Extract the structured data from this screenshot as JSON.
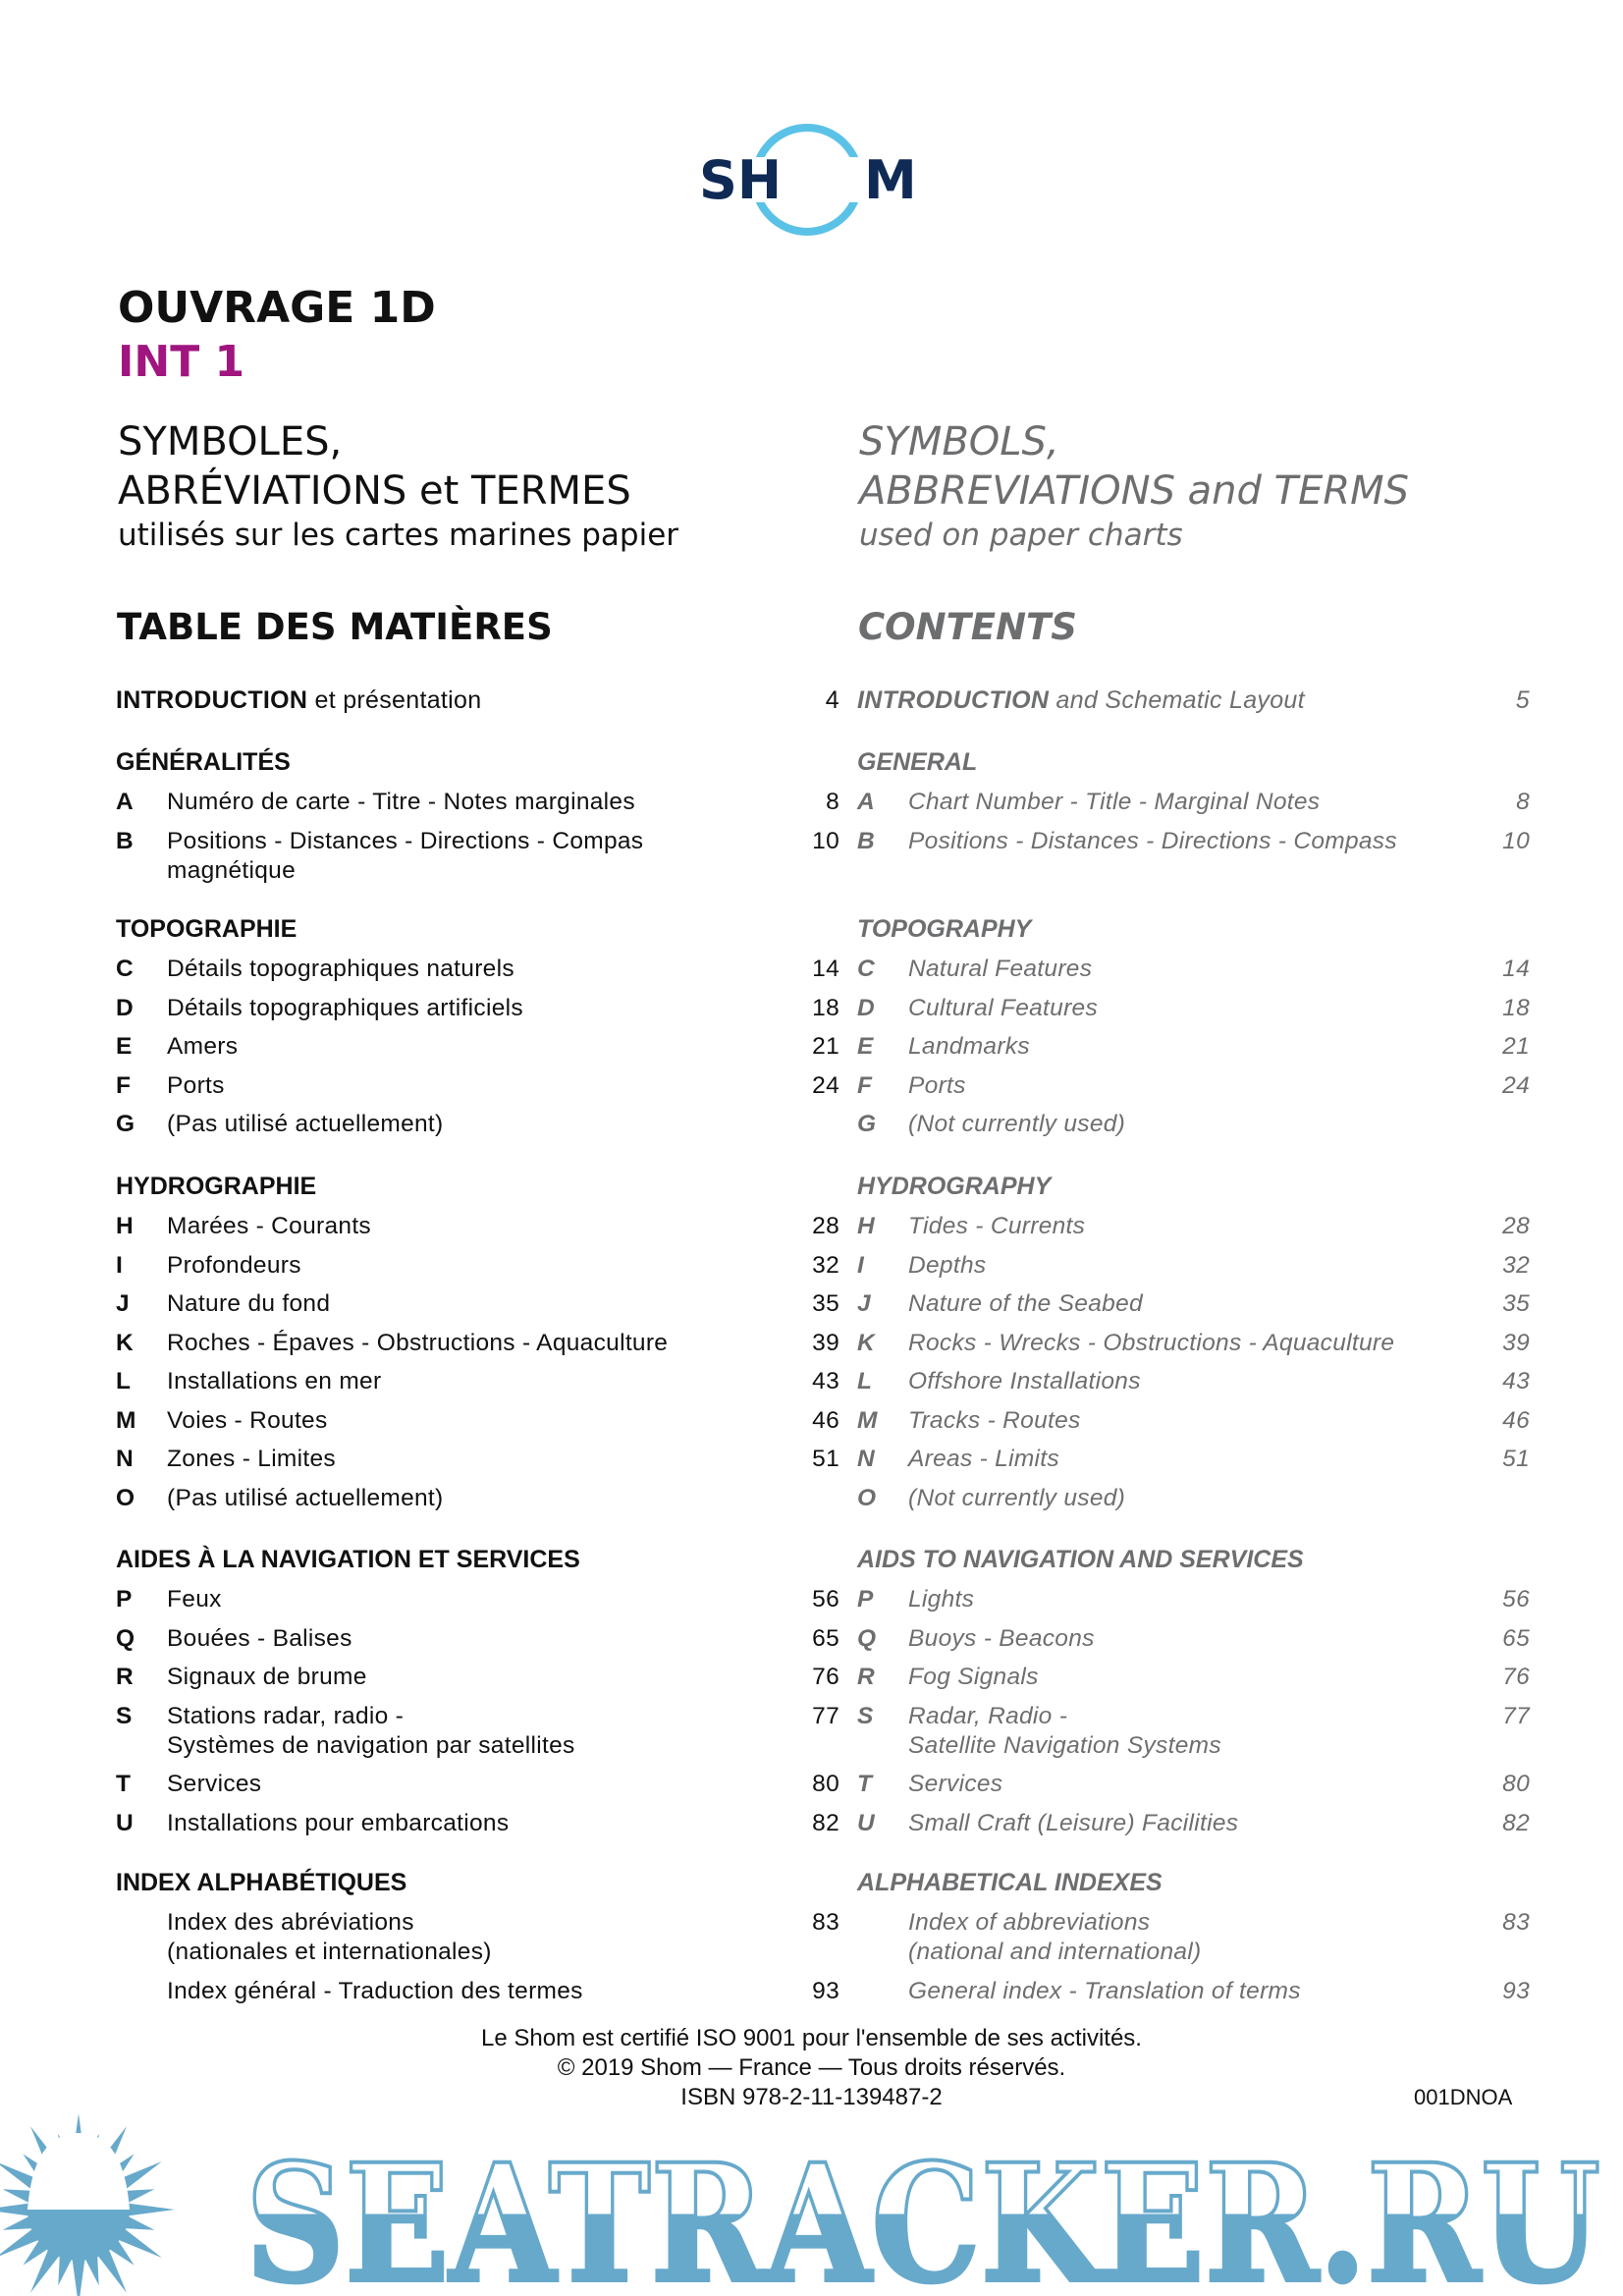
{
  "logo": {
    "text_left": "SH",
    "text_right": "M",
    "navy": "#0e2a55",
    "ring": "#5bc2e7"
  },
  "header": {
    "title": "OUVRAGE 1D",
    "subtitle": "INT 1",
    "subtitle_color": "#a0157f"
  },
  "fr": {
    "line1": "SYMBOLES,",
    "line2": "ABRÉVIATIONS et TERMES",
    "line3": "utilisés sur les cartes marines papier",
    "toc_title": "TABLE DES MATIÈRES",
    "intro": {
      "bold": "INTRODUCTION",
      "rest": " et présentation",
      "page": "4"
    },
    "sections": [
      {
        "title": "GÉNÉRALITÉS",
        "items": [
          {
            "letter": "A",
            "label": "Numéro de carte - Titre - Notes marginales",
            "page": "8"
          },
          {
            "letter": "B",
            "label": "Positions - Distances - Directions - Compas",
            "label2": "magnétique",
            "page": "10"
          }
        ]
      },
      {
        "title": "TOPOGRAPHIE",
        "items": [
          {
            "letter": "C",
            "label": "Détails topographiques naturels",
            "page": "14"
          },
          {
            "letter": "D",
            "label": "Détails topographiques artificiels",
            "page": "18"
          },
          {
            "letter": "E",
            "label": "Amers",
            "page": "21"
          },
          {
            "letter": "F",
            "label": "Ports",
            "page": "24"
          },
          {
            "letter": "G",
            "label": "(Pas utilisé actuellement)",
            "page": ""
          }
        ]
      },
      {
        "title": "HYDROGRAPHIE",
        "items": [
          {
            "letter": "H",
            "label": "Marées - Courants",
            "page": "28"
          },
          {
            "letter": "I",
            "label": "Profondeurs",
            "page": "32"
          },
          {
            "letter": "J",
            "label": "Nature du fond",
            "page": "35"
          },
          {
            "letter": "K",
            "label": "Roches - Épaves - Obstructions - Aquaculture",
            "page": "39"
          },
          {
            "letter": "L",
            "label": "Installations en mer",
            "page": "43"
          },
          {
            "letter": "M",
            "label": "Voies - Routes",
            "page": "46"
          },
          {
            "letter": "N",
            "label": "Zones - Limites",
            "page": "51"
          },
          {
            "letter": "O",
            "label": "(Pas utilisé actuellement)",
            "page": ""
          }
        ]
      },
      {
        "title": "AIDES À LA NAVIGATION ET SERVICES",
        "items": [
          {
            "letter": "P",
            "label": "Feux",
            "page": "56"
          },
          {
            "letter": "Q",
            "label": "Bouées - Balises",
            "page": "65"
          },
          {
            "letter": "R",
            "label": "Signaux de brume",
            "page": "76"
          },
          {
            "letter": "S",
            "label": "Stations radar, radio -",
            "label2": "Systèmes de navigation par satellites",
            "page": "77"
          },
          {
            "letter": "T",
            "label": "Services",
            "page": "80"
          },
          {
            "letter": "U",
            "label": "Installations pour embarcations",
            "page": "82"
          }
        ]
      },
      {
        "title": "INDEX ALPHABÉTIQUES",
        "items": [
          {
            "letter": "",
            "label": "Index des abréviations",
            "label2": "(nationales et internationales)",
            "page": "83"
          },
          {
            "letter": "",
            "label": "Index général - Traduction des termes",
            "page": "93"
          }
        ]
      }
    ]
  },
  "en": {
    "line1": "SYMBOLS,",
    "line2": "ABBREVIATIONS and TERMS",
    "line3": "used on paper charts",
    "toc_title": "CONTENTS",
    "intro": {
      "bold": "INTRODUCTION",
      "rest": " and Schematic Layout",
      "page": "5"
    },
    "sections": [
      {
        "title": "GENERAL",
        "items": [
          {
            "letter": "A",
            "label": "Chart Number - Title - Marginal Notes",
            "page": "8"
          },
          {
            "letter": "B",
            "label": "Positions - Distances - Directions - Compass",
            "page": "10"
          }
        ]
      },
      {
        "title": "TOPOGRAPHY",
        "items": [
          {
            "letter": "C",
            "label": "Natural Features",
            "page": "14"
          },
          {
            "letter": "D",
            "label": "Cultural Features",
            "page": "18"
          },
          {
            "letter": "E",
            "label": "Landmarks",
            "page": "21"
          },
          {
            "letter": "F",
            "label": "Ports",
            "page": "24"
          },
          {
            "letter": "G",
            "label": "(Not currently used)",
            "page": ""
          }
        ]
      },
      {
        "title": "HYDROGRAPHY",
        "items": [
          {
            "letter": "H",
            "label": "Tides - Currents",
            "page": "28"
          },
          {
            "letter": "I",
            "label": "Depths",
            "page": "32"
          },
          {
            "letter": "J",
            "label": "Nature of the Seabed",
            "page": "35"
          },
          {
            "letter": "K",
            "label": "Rocks - Wrecks - Obstructions - Aquaculture",
            "page": "39"
          },
          {
            "letter": "L",
            "label": "Offshore Installations",
            "page": "43"
          },
          {
            "letter": "M",
            "label": "Tracks - Routes",
            "page": "46"
          },
          {
            "letter": "N",
            "label": "Areas - Limits",
            "page": "51"
          },
          {
            "letter": "O",
            "label": "(Not currently used)",
            "page": ""
          }
        ]
      },
      {
        "title": "AIDS TO NAVIGATION AND SERVICES",
        "items": [
          {
            "letter": "P",
            "label": "Lights",
            "page": "56"
          },
          {
            "letter": "Q",
            "label": "Buoys - Beacons",
            "page": "65"
          },
          {
            "letter": "R",
            "label": "Fog Signals",
            "page": "76"
          },
          {
            "letter": "S",
            "label": "Radar, Radio -",
            "label2": "Satellite Navigation Systems",
            "page": "77"
          },
          {
            "letter": "T",
            "label": "Services",
            "page": "80"
          },
          {
            "letter": "U",
            "label": "Small Craft (Leisure) Facilities",
            "page": "82"
          }
        ]
      },
      {
        "title": "ALPHABETICAL INDEXES",
        "items": [
          {
            "letter": "",
            "label": "Index of abbreviations",
            "label2": "(national and international)",
            "page": "83"
          },
          {
            "letter": "",
            "label": "General index - Translation of terms",
            "page": "93"
          }
        ]
      }
    ]
  },
  "footer": {
    "cert": "Le Shom est certifié ISO 9001 pour l'ensemble de ses activités.",
    "copyright": "© 2019 Shom — France — Tous droits réservés.",
    "isbn": "ISBN 978-2-11-139487-2",
    "code": "001DNOA"
  },
  "watermark": {
    "text": "SEATRACKER.RU",
    "color": "#67a9cb"
  }
}
